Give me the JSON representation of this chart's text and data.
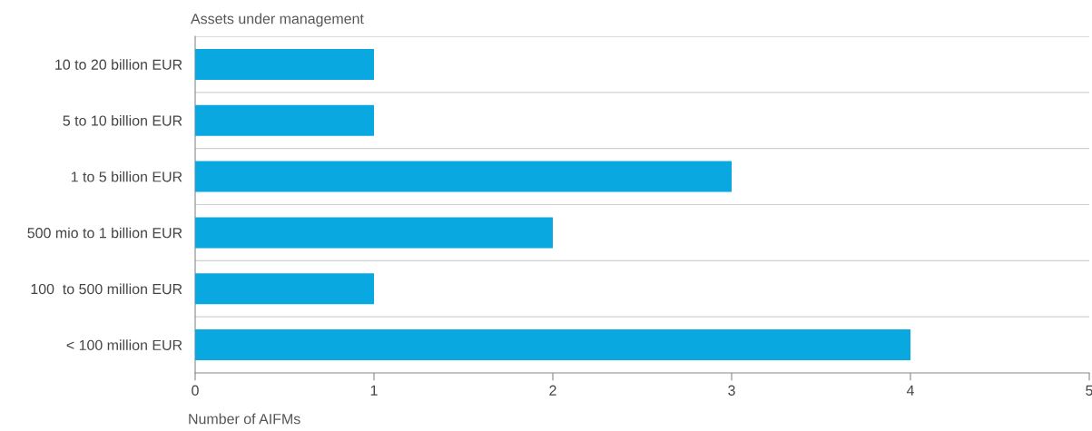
{
  "chart_data": {
    "type": "bar",
    "orientation": "horizontal",
    "ylabel": "Assets under management",
    "xlabel": "Number of AIFMs",
    "categories": [
      "10 to 20 billion EUR",
      "5 to 10 billion EUR",
      "1 to 5 billion EUR",
      "500 mio to 1 billion EUR",
      "100  to 500 million EUR",
      "< 100 million EUR"
    ],
    "values": [
      1,
      1,
      3,
      2,
      1,
      4
    ],
    "color": "#0aa8e0",
    "xlim": [
      0,
      5
    ],
    "xticks": [
      0,
      1,
      2,
      3,
      4,
      5
    ],
    "grid": "y"
  }
}
